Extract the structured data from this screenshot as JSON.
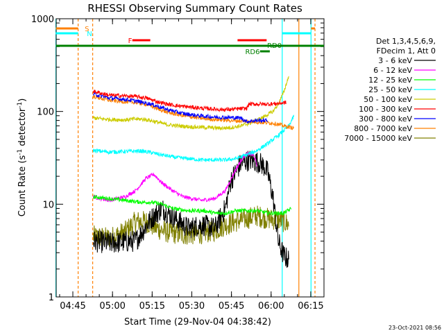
{
  "chart_data": {
    "type": "line",
    "title": "RHESSI Observing Summary Count Rates",
    "xlabel": "Start Time (29-Nov-04 04:38:42)",
    "ylabel_main": "Count Rate (s",
    "ylabel_sup1": "-1",
    "ylabel_mid": " detector",
    "ylabel_sup2": "-1",
    "ylabel_end": ")",
    "yscale": "log",
    "ylim": [
      1,
      1000
    ],
    "xlim_minutes_after_0438": [
      0,
      101.3
    ],
    "x_ticks": [
      {
        "label": "04:45",
        "t": 6.3
      },
      {
        "label": "05:00",
        "t": 21.3
      },
      {
        "label": "05:15",
        "t": 36.3
      },
      {
        "label": "05:30",
        "t": 51.3
      },
      {
        "label": "05:45",
        "t": 66.3
      },
      {
        "label": "06:00",
        "t": 81.3
      },
      {
        "label": "06:15",
        "t": 96.3
      }
    ],
    "y_ticks": [
      {
        "label": "1",
        "v": 1
      },
      {
        "label": "10",
        "v": 10
      },
      {
        "label": "100",
        "v": 100
      },
      {
        "label": "1000",
        "v": 1000
      }
    ],
    "legend_header": [
      "Det 1,3,4,5,6,9,",
      "FDecim 1, Att 0"
    ],
    "timestamp": "23-Oct-2021 08:56",
    "flags": [
      {
        "label": "S",
        "color": "#ff8000"
      },
      {
        "label": "N",
        "color": "#00ffff"
      },
      {
        "label": "F",
        "color": "#ff0000"
      },
      {
        "label": "RD0",
        "color": "#008000"
      },
      {
        "label": "RD6",
        "color": "#008000"
      }
    ],
    "series": [
      {
        "name": "3 - 6 keV",
        "color": "#000000",
        "points": [
          [
            14,
            4
          ],
          [
            20,
            3.8
          ],
          [
            30,
            4
          ],
          [
            36,
            7
          ],
          [
            40,
            9
          ],
          [
            45,
            7
          ],
          [
            50,
            5.5
          ],
          [
            55,
            6
          ],
          [
            60,
            5.5
          ],
          [
            64,
            9
          ],
          [
            66,
            18
          ],
          [
            70,
            28
          ],
          [
            73,
            30
          ],
          [
            77,
            28
          ],
          [
            79,
            25
          ],
          [
            80,
            22
          ],
          [
            82,
            12
          ],
          [
            84,
            4
          ],
          [
            86,
            2.8
          ],
          [
            88,
            2.5
          ]
        ]
      },
      {
        "name": "6 - 12 keV",
        "color": "#ff00ff",
        "points": [
          [
            14,
            12
          ],
          [
            20,
            11
          ],
          [
            26,
            12
          ],
          [
            30,
            14
          ],
          [
            34,
            19
          ],
          [
            37,
            21
          ],
          [
            40,
            17
          ],
          [
            44,
            14
          ],
          [
            48,
            12
          ],
          [
            55,
            11
          ],
          [
            60,
            11.5
          ],
          [
            64,
            14
          ],
          [
            68,
            24
          ],
          [
            71,
            33
          ],
          [
            73,
            35
          ],
          [
            75,
            33
          ],
          [
            76,
            25
          ]
        ]
      },
      {
        "name": "12 - 25 keV",
        "color": "#00ff00",
        "points": [
          [
            14,
            12
          ],
          [
            20,
            11.5
          ],
          [
            26,
            11
          ],
          [
            32,
            10.5
          ],
          [
            36,
            10.5
          ],
          [
            40,
            10
          ],
          [
            44,
            9
          ],
          [
            50,
            8.5
          ],
          [
            56,
            8.5
          ],
          [
            60,
            8
          ],
          [
            64,
            8
          ],
          [
            68,
            8.5
          ],
          [
            72,
            8.5
          ],
          [
            76,
            8.5
          ],
          [
            80,
            8
          ],
          [
            82,
            8
          ],
          [
            86,
            8
          ],
          [
            89,
            9
          ]
        ]
      },
      {
        "name": "25 - 50 keV",
        "color": "#00ffff",
        "points": [
          [
            14,
            38
          ],
          [
            20,
            36.5
          ],
          [
            26,
            37
          ],
          [
            32,
            37.5
          ],
          [
            36,
            36
          ],
          [
            40,
            34
          ],
          [
            45,
            32
          ],
          [
            50,
            31
          ],
          [
            55,
            30
          ],
          [
            60,
            30
          ],
          [
            64,
            30
          ],
          [
            68,
            31
          ],
          [
            72,
            34
          ],
          [
            76,
            38
          ],
          [
            80,
            45
          ],
          [
            84,
            55
          ],
          [
            88,
            70
          ],
          [
            90,
            90
          ]
        ]
      },
      {
        "name": "50 - 100 keV",
        "color": "#cccc00",
        "points": [
          [
            14,
            85
          ],
          [
            20,
            82
          ],
          [
            26,
            81
          ],
          [
            30,
            83
          ],
          [
            34,
            82
          ],
          [
            38,
            77
          ],
          [
            42,
            72
          ],
          [
            46,
            70
          ],
          [
            52,
            68
          ],
          [
            58,
            67
          ],
          [
            62,
            66
          ],
          [
            66,
            67
          ],
          [
            70,
            70
          ],
          [
            74,
            76
          ],
          [
            78,
            86
          ],
          [
            82,
            100
          ],
          [
            84,
            120
          ],
          [
            86,
            160
          ],
          [
            88,
            240
          ]
        ]
      },
      {
        "name": "100 - 300 keV",
        "color": "#ff0000",
        "points": [
          [
            14,
            165
          ],
          [
            20,
            150
          ],
          [
            24,
            148
          ],
          [
            30,
            145
          ],
          [
            34,
            140
          ],
          [
            38,
            128
          ],
          [
            42,
            120
          ],
          [
            46,
            115
          ],
          [
            50,
            112
          ],
          [
            56,
            108
          ],
          [
            62,
            105
          ],
          [
            66,
            105
          ],
          [
            70,
            107
          ],
          [
            72,
            108
          ],
          [
            73,
            120
          ],
          [
            76,
            120
          ],
          [
            80,
            120
          ],
          [
            84,
            122
          ],
          [
            87,
            125
          ]
        ]
      },
      {
        "name": "300 - 800 keV",
        "color": "#0000ff",
        "points": [
          [
            14,
            155
          ],
          [
            20,
            140
          ],
          [
            26,
            135
          ],
          [
            30,
            130
          ],
          [
            36,
            120
          ],
          [
            42,
            105
          ],
          [
            48,
            95
          ],
          [
            54,
            90
          ],
          [
            60,
            87
          ],
          [
            66,
            86
          ],
          [
            70,
            85
          ],
          [
            72,
            78
          ],
          [
            76,
            80
          ],
          [
            80,
            80
          ]
        ]
      },
      {
        "name": "800 - 7000 keV",
        "color": "#ff8000",
        "points": [
          [
            14,
            145
          ],
          [
            20,
            132
          ],
          [
            26,
            127
          ],
          [
            30,
            125
          ],
          [
            34,
            120
          ],
          [
            38,
            108
          ],
          [
            42,
            98
          ],
          [
            48,
            90
          ],
          [
            54,
            85
          ],
          [
            60,
            82
          ],
          [
            66,
            80
          ],
          [
            70,
            79
          ],
          [
            74,
            78
          ],
          [
            78,
            76
          ],
          [
            82,
            75
          ],
          [
            86,
            70
          ],
          [
            90,
            66
          ]
        ]
      },
      {
        "name": "7000 - 15000 keV",
        "color": "#808000",
        "points": [
          [
            14,
            4.5
          ],
          [
            20,
            4.3
          ],
          [
            26,
            5
          ],
          [
            30,
            6.5
          ],
          [
            34,
            6.5
          ],
          [
            38,
            5.5
          ],
          [
            42,
            5
          ],
          [
            48,
            4.7
          ],
          [
            54,
            4.8
          ],
          [
            60,
            5.2
          ],
          [
            64,
            6
          ],
          [
            68,
            6.5
          ],
          [
            72,
            7
          ],
          [
            76,
            7.5
          ],
          [
            80,
            7
          ],
          [
            84,
            6.8
          ],
          [
            86,
            6.5
          ],
          [
            88,
            6
          ]
        ]
      }
    ]
  }
}
